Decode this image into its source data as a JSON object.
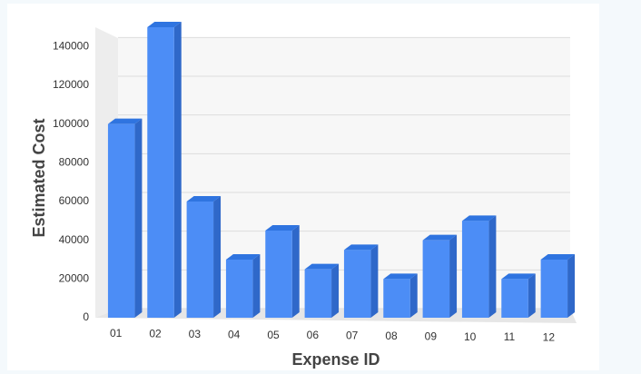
{
  "chart_data": {
    "type": "bar3d",
    "categories": [
      "01",
      "02",
      "03",
      "04",
      "05",
      "06",
      "07",
      "08",
      "09",
      "10",
      "11",
      "12"
    ],
    "values": [
      100000,
      150000,
      60000,
      30000,
      45000,
      25000,
      35000,
      20000,
      40000,
      50000,
      20000,
      30000
    ],
    "color": "#4c8df6",
    "ylim": [
      0,
      150000
    ],
    "yticks": [
      0,
      20000,
      40000,
      60000,
      80000,
      100000,
      120000,
      140000
    ],
    "grid": true,
    "x_label": "Expense ID",
    "y_label": "Estimated Cost"
  }
}
